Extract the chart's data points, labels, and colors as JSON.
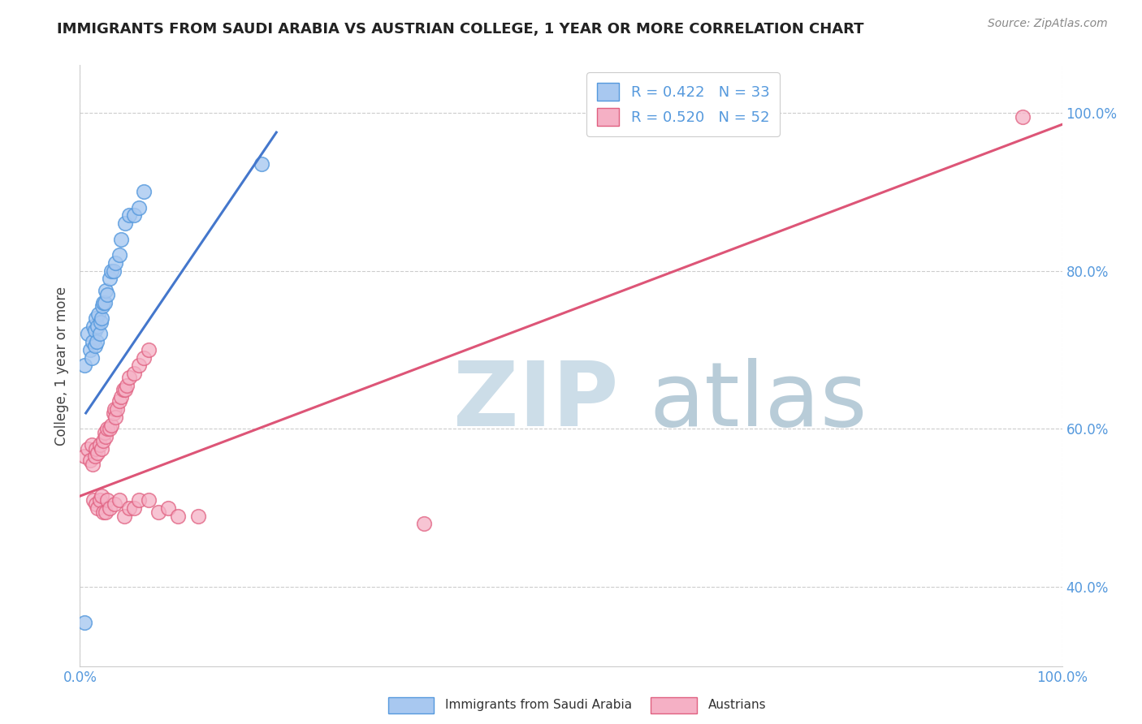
{
  "title": "IMMIGRANTS FROM SAUDI ARABIA VS AUSTRIAN COLLEGE, 1 YEAR OR MORE CORRELATION CHART",
  "source": "Source: ZipAtlas.com",
  "ylabel": "College, 1 year or more",
  "xlim": [
    0.0,
    1.0
  ],
  "ylim": [
    0.3,
    1.06
  ],
  "yticks": [
    0.4,
    0.6,
    0.8,
    1.0
  ],
  "ytick_labels": [
    "40.0%",
    "60.0%",
    "80.0%",
    "100.0%"
  ],
  "xticks": [
    0.0,
    1.0
  ],
  "xtick_labels": [
    "0.0%",
    "100.0%"
  ],
  "legend_blue_r": "R = 0.422",
  "legend_blue_n": "N = 33",
  "legend_pink_r": "R = 0.520",
  "legend_pink_n": "N = 52",
  "legend_blue_label": "Immigrants from Saudi Arabia",
  "legend_pink_label": "Austrians",
  "blue_fill": "#a8c8f0",
  "blue_edge": "#5599dd",
  "pink_fill": "#f5b0c5",
  "pink_edge": "#e06080",
  "blue_line": "#4477cc",
  "pink_line": "#dd5577",
  "watermark_zip_color": "#ccdde8",
  "watermark_atlas_color": "#b8ccd8",
  "tick_color": "#5599dd",
  "grid_color": "#cccccc",
  "background": "#ffffff",
  "blue_x": [
    0.005,
    0.008,
    0.01,
    0.012,
    0.013,
    0.014,
    0.015,
    0.015,
    0.016,
    0.017,
    0.018,
    0.019,
    0.02,
    0.021,
    0.022,
    0.023,
    0.024,
    0.025,
    0.026,
    0.028,
    0.03,
    0.032,
    0.034,
    0.036,
    0.04,
    0.042,
    0.046,
    0.05,
    0.055,
    0.06,
    0.065,
    0.185,
    0.005
  ],
  "blue_y": [
    0.68,
    0.72,
    0.7,
    0.69,
    0.71,
    0.73,
    0.705,
    0.725,
    0.74,
    0.71,
    0.73,
    0.745,
    0.72,
    0.735,
    0.74,
    0.755,
    0.76,
    0.76,
    0.775,
    0.77,
    0.79,
    0.8,
    0.8,
    0.81,
    0.82,
    0.84,
    0.86,
    0.87,
    0.87,
    0.88,
    0.9,
    0.935,
    0.355
  ],
  "pink_x": [
    0.005,
    0.008,
    0.01,
    0.012,
    0.013,
    0.015,
    0.016,
    0.018,
    0.02,
    0.022,
    0.024,
    0.025,
    0.026,
    0.028,
    0.03,
    0.032,
    0.034,
    0.035,
    0.036,
    0.038,
    0.04,
    0.042,
    0.044,
    0.046,
    0.048,
    0.05,
    0.055,
    0.06,
    0.065,
    0.07,
    0.014,
    0.016,
    0.018,
    0.02,
    0.022,
    0.024,
    0.026,
    0.028,
    0.03,
    0.035,
    0.04,
    0.045,
    0.05,
    0.055,
    0.06,
    0.07,
    0.08,
    0.09,
    0.1,
    0.12,
    0.35,
    0.96
  ],
  "pink_y": [
    0.565,
    0.575,
    0.56,
    0.58,
    0.555,
    0.565,
    0.575,
    0.57,
    0.58,
    0.575,
    0.585,
    0.595,
    0.59,
    0.6,
    0.6,
    0.605,
    0.62,
    0.625,
    0.615,
    0.625,
    0.635,
    0.64,
    0.65,
    0.65,
    0.655,
    0.665,
    0.67,
    0.68,
    0.69,
    0.7,
    0.51,
    0.505,
    0.5,
    0.51,
    0.515,
    0.495,
    0.495,
    0.51,
    0.5,
    0.505,
    0.51,
    0.49,
    0.5,
    0.5,
    0.51,
    0.51,
    0.495,
    0.5,
    0.49,
    0.49,
    0.48,
    0.995
  ],
  "blue_line_x": [
    0.006,
    0.2
  ],
  "blue_line_y": [
    0.62,
    0.975
  ],
  "pink_line_x": [
    0.0,
    1.0
  ],
  "pink_line_y": [
    0.515,
    0.985
  ]
}
